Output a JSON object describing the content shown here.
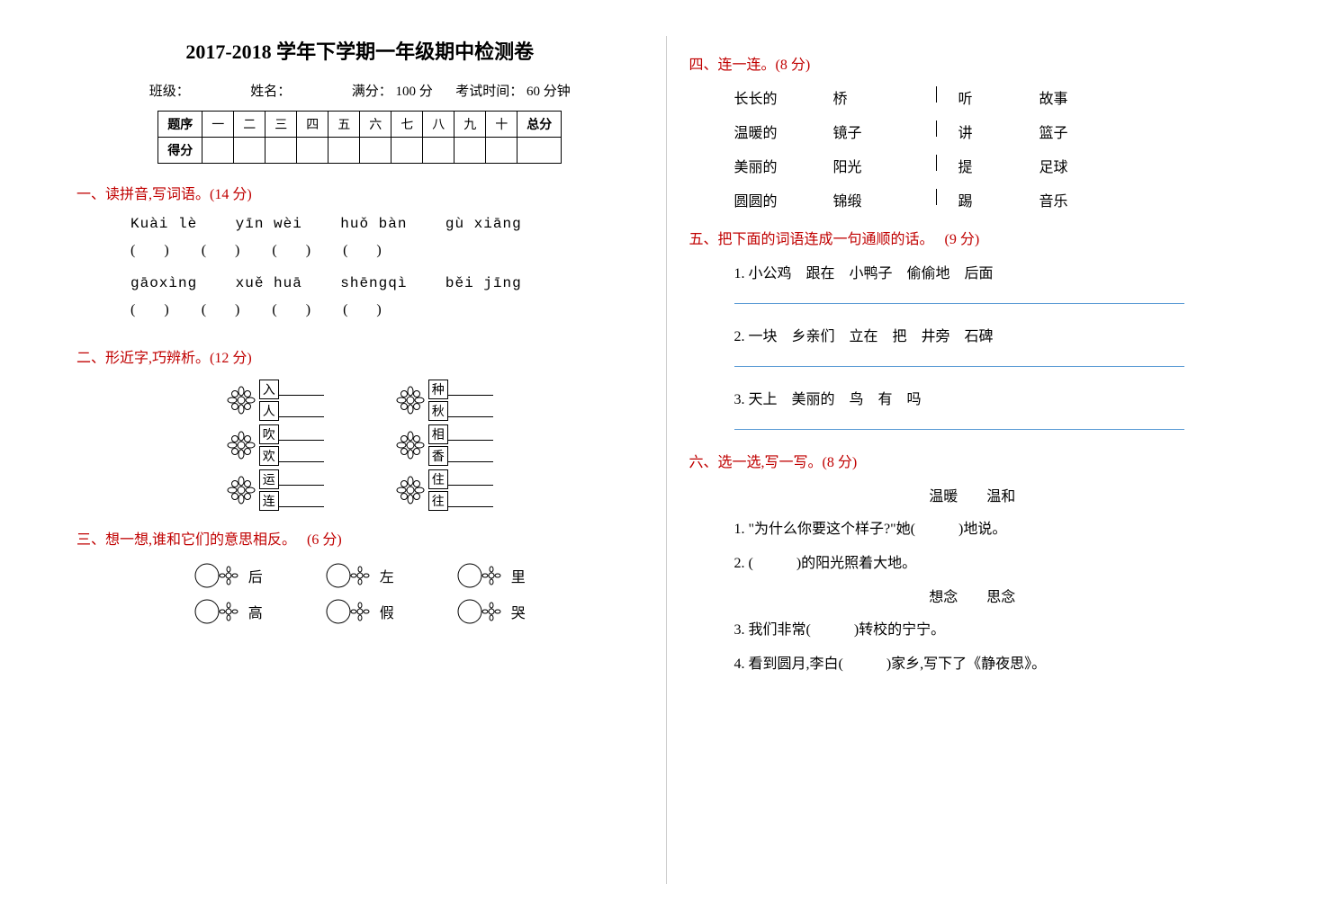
{
  "title": "2017-2018 学年下学期一年级期中检测卷",
  "meta": {
    "class_label": "班级：",
    "name_label": "姓名：",
    "full_label": "满分：",
    "full_value": "100 分",
    "time_label": "考试时间：",
    "time_value": "60 分钟"
  },
  "score_table": {
    "row1": [
      "题序",
      "一",
      "二",
      "三",
      "四",
      "五",
      "六",
      "七",
      "八",
      "九",
      "十",
      "总分"
    ],
    "row2_label": "得分"
  },
  "sec1": {
    "num": "一、",
    "title": "读拼音,写词语。(14 分)",
    "pinyin1": [
      "Kuài lè",
      "yīn wèi",
      "huǒ bàn",
      "gù xiāng"
    ],
    "pinyin2": [
      "gāoxìng",
      "xuě huā",
      "shēngqì",
      "běi jīng"
    ]
  },
  "sec2": {
    "num": "二、",
    "title": "形近字,巧辨析。(12 分)",
    "pairs": [
      [
        [
          "入",
          "人"
        ],
        [
          "种",
          "秋"
        ]
      ],
      [
        [
          "吹",
          "欢"
        ],
        [
          "相",
          "香"
        ]
      ],
      [
        [
          "运",
          "连"
        ],
        [
          "住",
          "往"
        ]
      ]
    ]
  },
  "sec3": {
    "num": "三、",
    "title": "想一想,谁和它们的意思相反。",
    "points": "(6 分)",
    "row1": [
      "后",
      "左",
      "里"
    ],
    "row2": [
      "高",
      "假",
      "哭"
    ]
  },
  "sec4": {
    "num": "四、",
    "title": "连一连。(8 分)",
    "rows": [
      [
        "长长的",
        "桥",
        "听",
        "故事"
      ],
      [
        "温暖的",
        "镜子",
        "讲",
        "篮子"
      ],
      [
        "美丽的",
        "阳光",
        "提",
        "足球"
      ],
      [
        "圆圆的",
        "锦缎",
        "踢",
        "音乐"
      ]
    ]
  },
  "sec5": {
    "num": "五、",
    "title": "把下面的词语连成一句通顺的话。",
    "points": "(9 分)",
    "items": [
      "1. 小公鸡　跟在　小鸭子　偷偷地　后面",
      "2. 一块　乡亲们　立在　把　井旁　石碑",
      "3. 天上　美丽的　鸟　有　吗"
    ]
  },
  "sec6": {
    "num": "六、",
    "title": "选一选,写一写。(8 分)",
    "group1_words": "温暖　　温和",
    "group1_items": [
      "1. \"为什么你要这个样子?\"她(　　　)地说。",
      "2. (　　　)的阳光照着大地。"
    ],
    "group2_words": "想念　　思念",
    "group2_items": [
      "3. 我们非常(　　　)转校的宁宁。",
      "4. 看到圆月,李白(　　　)家乡,写下了《静夜思》。"
    ]
  },
  "paren_unit": "(　　)",
  "paren_gap": "　　"
}
